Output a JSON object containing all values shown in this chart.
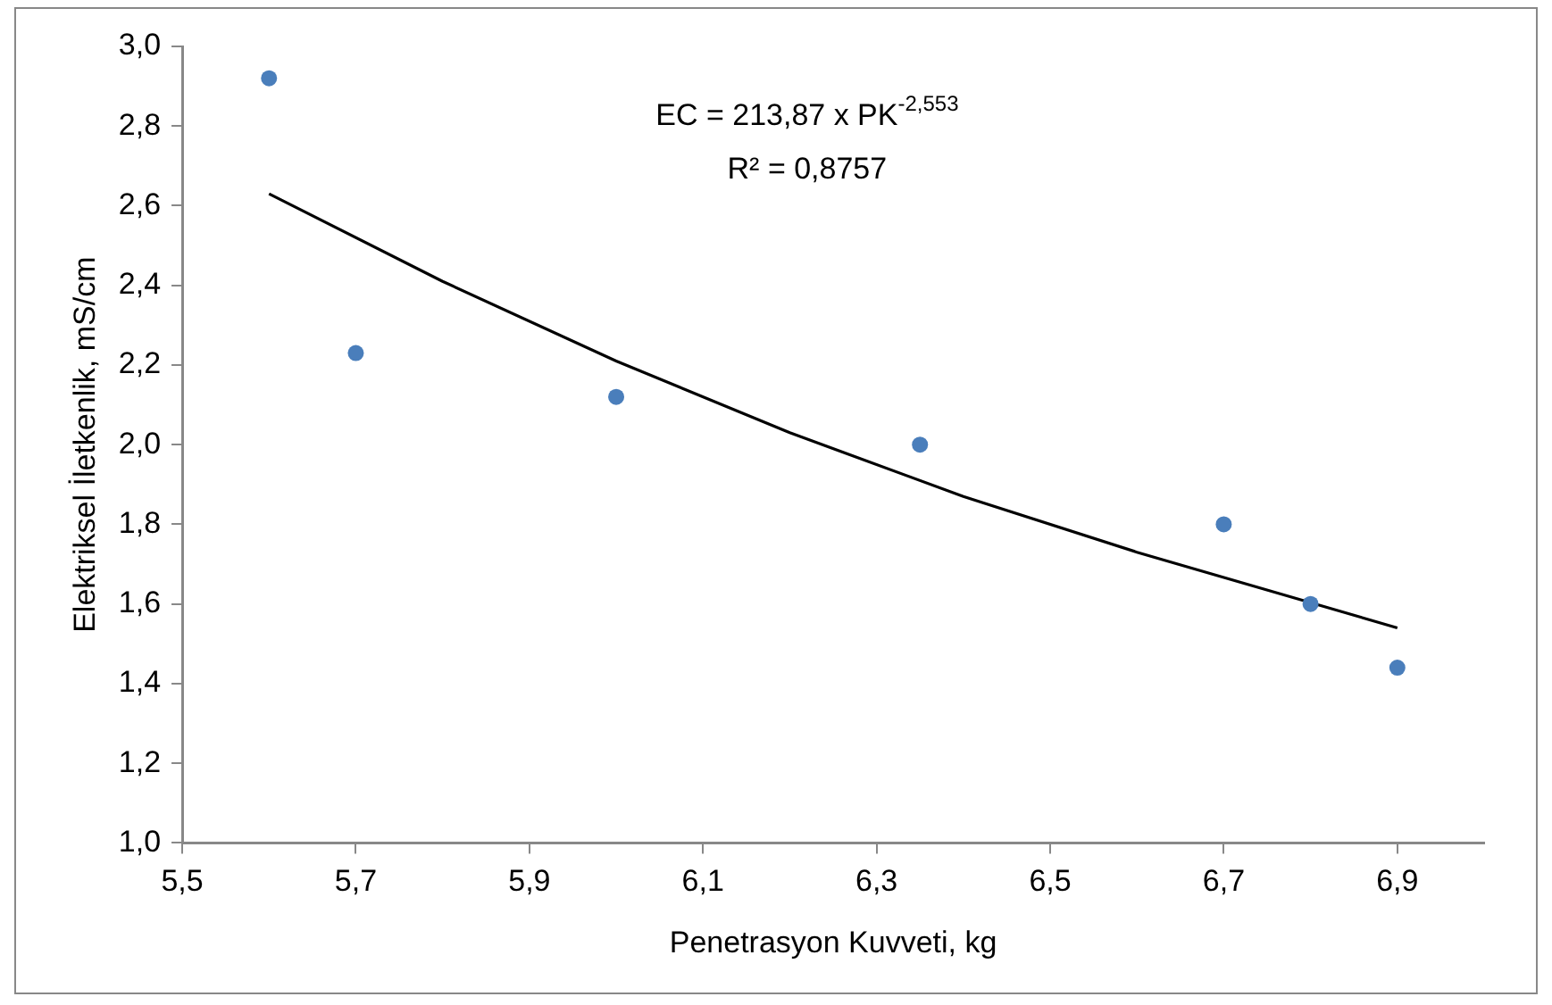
{
  "chart_data": {
    "type": "scatter",
    "xlabel": "Penetrasyon Kuvveti, kg",
    "ylabel": "Elektriksel İletkenlik, mS/cm",
    "x": [
      5.6,
      5.7,
      6.0,
      6.35,
      6.7,
      6.8,
      6.9
    ],
    "series": [
      {
        "type": "scatter",
        "color": "#4a7ebb",
        "marker": "circle",
        "values": [
          2.92,
          2.23,
          2.12,
          2.0,
          1.8,
          1.6,
          1.44
        ]
      },
      {
        "type": "line",
        "color": "#000000",
        "marker": "none",
        "x": [
          5.6,
          5.8,
          6.0,
          6.2,
          6.4,
          6.6,
          6.9
        ],
        "values": [
          2.63,
          2.41,
          2.21,
          2.03,
          1.87,
          1.73,
          1.54
        ]
      }
    ],
    "xlim": [
      5.5,
      7.0
    ],
    "xticks": [
      {
        "value": 5.5,
        "label": "5,5"
      },
      {
        "value": 5.7,
        "label": "5,7"
      },
      {
        "value": 5.9,
        "label": "5,9"
      },
      {
        "value": 6.1,
        "label": "6,1"
      },
      {
        "value": 6.3,
        "label": "6,3"
      },
      {
        "value": 6.5,
        "label": "6,5"
      },
      {
        "value": 6.7,
        "label": "6,7"
      },
      {
        "value": 6.9,
        "label": "6,9"
      }
    ],
    "ylim": [
      1.0,
      3.0
    ],
    "yticks": [
      {
        "value": 1.0,
        "label": "1,0"
      },
      {
        "value": 1.2,
        "label": "1,2"
      },
      {
        "value": 1.4,
        "label": "1,4"
      },
      {
        "value": 1.6,
        "label": "1,6"
      },
      {
        "value": 1.8,
        "label": "1,8"
      },
      {
        "value": 2.0,
        "label": "2,0"
      },
      {
        "value": 2.2,
        "label": "2,2"
      },
      {
        "value": 2.4,
        "label": "2,4"
      },
      {
        "value": 2.6,
        "label": "2,6"
      },
      {
        "value": 2.8,
        "label": "2,8"
      },
      {
        "value": 3.0,
        "label": "3,0"
      }
    ],
    "annotations": [
      "EC = 213,87 x PK$^{-2,553}$",
      "R² = 0,8757"
    ],
    "grid": false,
    "legend": false
  }
}
